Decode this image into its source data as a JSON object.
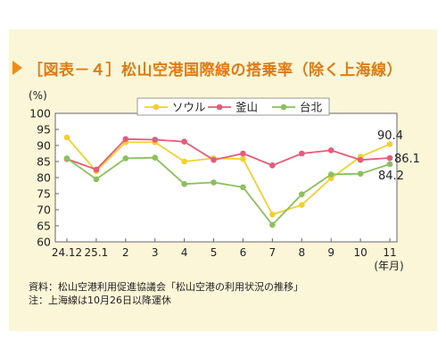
{
  "chart_data": {
    "type": "line",
    "title": "［図表－４］松山空港国際線の搭乗率（除く上海線）",
    "ylabel": "(%)",
    "xlabel": "(年月)",
    "ylim": [
      60,
      100
    ],
    "yticks": [
      "60",
      "65",
      "70",
      "75",
      "80",
      "85",
      "90",
      "95",
      "100"
    ],
    "categories": [
      "24.12",
      "25.1",
      "2",
      "3",
      "4",
      "5",
      "6",
      "7",
      "8",
      "9",
      "10",
      "11"
    ],
    "grid": false,
    "legend_position": "top-center",
    "series": [
      {
        "name": "ソウル",
        "color": "#f5d02c",
        "values": [
          92.5,
          82.0,
          91.0,
          91.0,
          85.0,
          86.0,
          85.8,
          68.5,
          71.5,
          79.8,
          86.5,
          90.4
        ]
      },
      {
        "name": "釜山",
        "color": "#e85a76",
        "values": [
          85.8,
          82.5,
          92.0,
          91.8,
          91.2,
          85.5,
          87.5,
          83.8,
          87.5,
          88.5,
          85.5,
          86.1
        ]
      },
      {
        "name": "台北",
        "color": "#8cc05c",
        "values": [
          86.0,
          79.5,
          86.0,
          86.2,
          78.0,
          78.5,
          77.0,
          65.3,
          74.8,
          81.0,
          81.2,
          84.2
        ]
      }
    ],
    "annotations": [
      "90.4",
      "86.1",
      "84.2"
    ]
  },
  "notes": {
    "source": "資料：松山空港利用促進協議会「松山空港の利用状況の推移」",
    "note": "注：上海線は10月26日以降運休"
  }
}
